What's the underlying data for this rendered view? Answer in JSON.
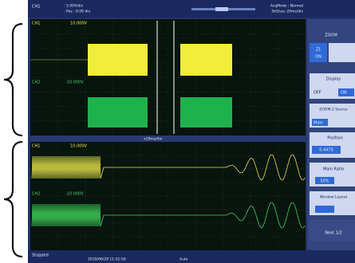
{
  "header": {
    "channel": "CH1",
    "scale": ": 5.00V/div",
    "position": ": Pos : 0.00 div",
    "acq_mode": "AcqMode : Normal",
    "sample": "5kS/sec  20ms/div"
  },
  "zoom1": {
    "ch1_label": "CH1",
    "ch1_level": "10.000V",
    "ch2_label": "CH2",
    "ch2_level": "-10.000V",
    "time": "x10ms/div"
  },
  "main": {
    "ch1_label": "CH1",
    "ch1_level": "10.000V",
    "ch2_label": "CH2",
    "ch2_level": "-10.000V"
  },
  "menu": {
    "title": "ZOOM",
    "z1": "Z1",
    "z1_state": "ON",
    "display": "Display",
    "off": "OFF",
    "on": "ON",
    "source": "ZOOM-2 Source",
    "main": "Main",
    "position": "Position",
    "position_value": "0.4470",
    "ratio": "Main Ratio",
    "ratio_value": "50%",
    "layout": "Window Layout",
    "next": "Next 1/2"
  },
  "status": {
    "state": "Stopped",
    "date": "2010/06/29 11:51:56",
    "mode": "Auto"
  }
}
